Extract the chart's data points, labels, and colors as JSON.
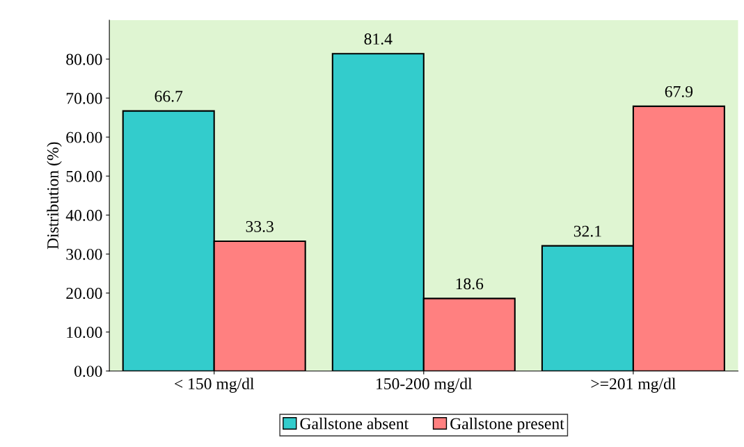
{
  "chart_data": {
    "type": "bar",
    "ylabel": "Distribution (%)",
    "categories": [
      "< 150 mg/dl",
      "150-200 mg/dl",
      ">=201 mg/dl"
    ],
    "series": [
      {
        "name": "Gallstone absent",
        "color": "#33cccc",
        "values": [
          66.7,
          81.4,
          32.1
        ]
      },
      {
        "name": "Gallstone present",
        "color": "#ff8080",
        "values": [
          33.3,
          18.6,
          67.9
        ]
      }
    ],
    "ylim": [
      0,
      90
    ],
    "yticks": [
      {
        "value": 0,
        "label": "0.00"
      },
      {
        "value": 10,
        "label": "10.00"
      },
      {
        "value": 20,
        "label": "20.00"
      },
      {
        "value": 30,
        "label": "30.00"
      },
      {
        "value": 40,
        "label": "40.00"
      },
      {
        "value": 50,
        "label": "50.00"
      },
      {
        "value": 60,
        "label": "60.00"
      },
      {
        "value": 70,
        "label": "70.00"
      },
      {
        "value": 80,
        "label": "80.00"
      }
    ],
    "data_labels": true,
    "grid": false,
    "legend": "bottom"
  }
}
